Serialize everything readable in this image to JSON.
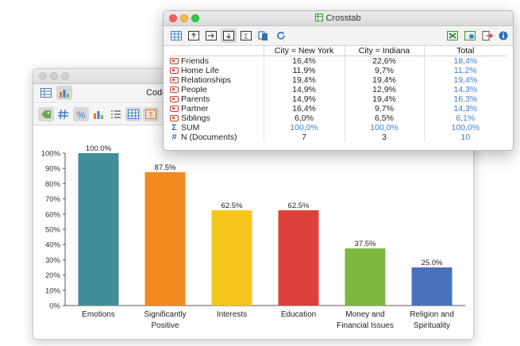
{
  "code_window": {
    "title": "Code",
    "colors": {
      "active_button": "#d8d8d8"
    }
  },
  "crosstab": {
    "title": "Crosstab",
    "columns": [
      "",
      "City = New York",
      "City = Indiana",
      "Total"
    ],
    "rows": [
      {
        "label": "Friends",
        "icon": "code-icon",
        "values": [
          "16,4%",
          "22,6%",
          "18,4%"
        ]
      },
      {
        "label": "Home Life",
        "icon": "code-icon",
        "values": [
          "11,9%",
          "9,7%",
          "11,2%"
        ]
      },
      {
        "label": "Relationships",
        "icon": "code-icon",
        "values": [
          "19,4%",
          "19,4%",
          "19,4%"
        ]
      },
      {
        "label": "People",
        "icon": "code-icon",
        "values": [
          "14,9%",
          "12,9%",
          "14,3%"
        ]
      },
      {
        "label": "Parents",
        "icon": "code-icon",
        "values": [
          "14,9%",
          "19,4%",
          "16,3%"
        ]
      },
      {
        "label": "Partner",
        "icon": "code-icon",
        "values": [
          "16,4%",
          "9,7%",
          "14,3%"
        ]
      },
      {
        "label": "Siblings",
        "icon": "code-icon",
        "values": [
          "6,0%",
          "6,5%",
          "6,1%"
        ]
      },
      {
        "label": "SUM",
        "icon": "sigma-icon",
        "symbol": "Σ",
        "values": [
          "100,0%",
          "100,0%",
          "100,0%"
        ]
      },
      {
        "label": "N (Documents)",
        "icon": "hash-icon",
        "symbol": "#",
        "values": [
          "7",
          "3",
          "10"
        ]
      }
    ],
    "colors": {
      "total_text": "#3d7fd6",
      "code_icon": "#d04030"
    }
  },
  "chart_data": {
    "type": "bar",
    "categories": [
      "Emotions",
      "Significantly Positive",
      "Interests",
      "Education",
      "Money and Financial Issues",
      "Religion and Spirituality"
    ],
    "category_lines": [
      [
        "Emotions"
      ],
      [
        "Significantly",
        "Positive"
      ],
      [
        "Interests"
      ],
      [
        "Education"
      ],
      [
        "Money and",
        "Financial Issues"
      ],
      [
        "Religion and",
        "Spirituality"
      ]
    ],
    "values": [
      100.0,
      87.5,
      62.5,
      62.5,
      37.5,
      25.0
    ],
    "value_labels": [
      "100.0%",
      "87.5%",
      "62.5%",
      "62.5%",
      "37.5%",
      "25.0%"
    ],
    "colors": [
      "#3f8e9a",
      "#f28a1f",
      "#f7c61c",
      "#dd3f3b",
      "#7db941",
      "#4a72bb"
    ],
    "ylim": [
      0,
      100
    ],
    "yticks": [
      "0%",
      "10%",
      "20%",
      "30%",
      "40%",
      "50%",
      "60%",
      "70%",
      "80%",
      "90%",
      "100%"
    ],
    "grid": false,
    "legend": "none"
  }
}
